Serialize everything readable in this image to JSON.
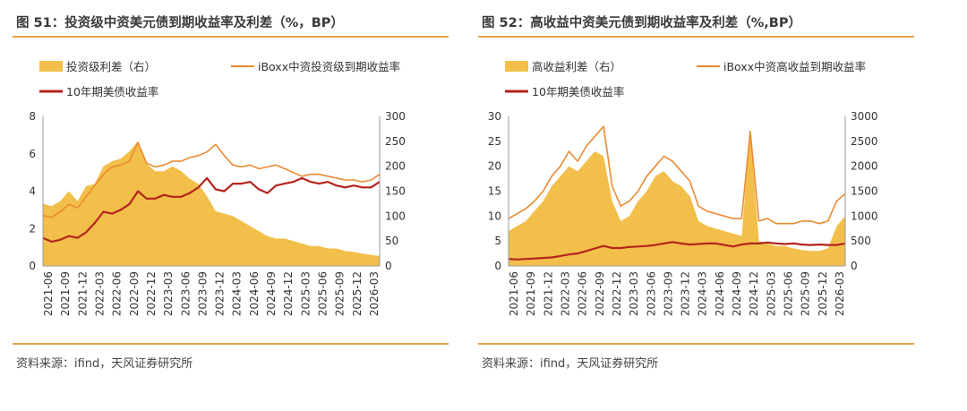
{
  "panels": [
    {
      "title": "图 51：投资级中资美元债到期收益率及利差（%，BP）",
      "source": "资料来源：ifind，天风证券研究所"
    },
    {
      "title": "图 52：高收益中资美元债到期收益率及利差（%,BP）",
      "source": "资料来源：ifind，天风证券研究所"
    }
  ],
  "colors": {
    "spread": "#f2bf4a",
    "ibox": "#eb8a33",
    "ust": "#b3241c",
    "rule": "#e9a24a"
  },
  "chart_data": [
    {
      "type": "line",
      "x_ticks": [
        "2021-06",
        "2021-09",
        "2021-12",
        "2022-03",
        "2022-06",
        "2022-09",
        "2022-12",
        "2023-03",
        "2023-06",
        "2023-09",
        "2023-12",
        "2024-03",
        "2024-06",
        "2024-09",
        "2024-12",
        "2025-03",
        "2025-06",
        "2025-09",
        "2025-12",
        "2026-03"
      ],
      "ylim_left": [
        0,
        8
      ],
      "yticks_left": [
        0,
        2,
        4,
        6,
        8
      ],
      "ylim_right": [
        0,
        300
      ],
      "yticks_right": [
        0,
        50,
        100,
        150,
        200,
        250,
        300
      ],
      "legend": "top",
      "series": [
        {
          "name": "投资级利差（右）",
          "kind": "area",
          "axis": "right",
          "values": [
            125,
            120,
            130,
            150,
            130,
            160,
            165,
            200,
            210,
            215,
            230,
            250,
            205,
            190,
            190,
            200,
            190,
            175,
            165,
            140,
            110,
            105,
            100,
            90,
            80,
            70,
            60,
            55,
            55,
            50,
            45,
            40,
            40,
            35,
            35,
            30,
            28,
            25,
            22,
            20
          ]
        },
        {
          "name": "iBoxx中资投资级到期收益率",
          "kind": "line",
          "axis": "left",
          "values": [
            2.7,
            2.6,
            2.9,
            3.3,
            3.1,
            3.7,
            4.3,
            4.9,
            5.3,
            5.4,
            5.6,
            6.6,
            5.5,
            5.3,
            5.4,
            5.6,
            5.6,
            5.8,
            5.9,
            6.1,
            6.5,
            5.9,
            5.4,
            5.3,
            5.4,
            5.2,
            5.3,
            5.4,
            5.2,
            5.0,
            4.8,
            4.9,
            4.9,
            4.8,
            4.7,
            4.6,
            4.6,
            4.5,
            4.6,
            4.9
          ]
        },
        {
          "name": "10年期美债收益率",
          "kind": "line",
          "axis": "left",
          "values": [
            1.5,
            1.3,
            1.4,
            1.6,
            1.5,
            1.8,
            2.3,
            2.9,
            2.8,
            3.0,
            3.3,
            4.0,
            3.6,
            3.6,
            3.8,
            3.7,
            3.7,
            3.9,
            4.2,
            4.7,
            4.1,
            4.0,
            4.4,
            4.4,
            4.5,
            4.1,
            3.9,
            4.3,
            4.4,
            4.5,
            4.7,
            4.5,
            4.4,
            4.5,
            4.3,
            4.2,
            4.3,
            4.2,
            4.2,
            4.5
          ]
        }
      ]
    },
    {
      "type": "line",
      "x_ticks": [
        "2021-06",
        "2021-09",
        "2021-12",
        "2022-03",
        "2022-06",
        "2022-09",
        "2022-12",
        "2023-03",
        "2023-06",
        "2023-09",
        "2023-12",
        "2024-03",
        "2024-06",
        "2024-09",
        "2024-12",
        "2025-03",
        "2025-06",
        "2025-09",
        "2025-12",
        "2026-03"
      ],
      "ylim_left": [
        0,
        30
      ],
      "yticks_left": [
        0,
        5,
        10,
        15,
        20,
        25,
        30
      ],
      "ylim_right": [
        0,
        3000
      ],
      "yticks_right": [
        0,
        500,
        1000,
        1500,
        2000,
        2500,
        3000
      ],
      "legend": "top",
      "series": [
        {
          "name": "高收益利差（右）",
          "kind": "area",
          "axis": "right",
          "values": [
            700,
            800,
            900,
            1100,
            1300,
            1600,
            1800,
            2000,
            1900,
            2100,
            2300,
            2200,
            1300,
            900,
            1000,
            1300,
            1500,
            1800,
            1900,
            1700,
            1600,
            1400,
            900,
            800,
            750,
            700,
            650,
            600,
            2700,
            500,
            450,
            400,
            400,
            350,
            320,
            300,
            300,
            350,
            800,
            1000
          ]
        },
        {
          "name": "iBoxx中资高收益到期收益率",
          "kind": "line",
          "axis": "left",
          "values": [
            9.5,
            10.5,
            11.5,
            13,
            15,
            18,
            20,
            23,
            21,
            24,
            26,
            28,
            16,
            12,
            13,
            15,
            18,
            20,
            22,
            21,
            19,
            17,
            12,
            11,
            10.5,
            10,
            9.5,
            9.5,
            27,
            9,
            9.5,
            8.5,
            8.5,
            8.5,
            9,
            9,
            8.5,
            9,
            13,
            14.5
          ]
        },
        {
          "name": "10年期美债收益率",
          "kind": "line",
          "axis": "left",
          "values": [
            1.4,
            1.3,
            1.4,
            1.5,
            1.6,
            1.7,
            2.0,
            2.3,
            2.5,
            3.0,
            3.5,
            4.0,
            3.6,
            3.6,
            3.8,
            3.9,
            4.0,
            4.2,
            4.5,
            4.8,
            4.5,
            4.3,
            4.4,
            4.5,
            4.5,
            4.2,
            3.9,
            4.3,
            4.5,
            4.5,
            4.7,
            4.5,
            4.4,
            4.5,
            4.3,
            4.2,
            4.3,
            4.2,
            4.2,
            4.5
          ]
        }
      ]
    }
  ]
}
